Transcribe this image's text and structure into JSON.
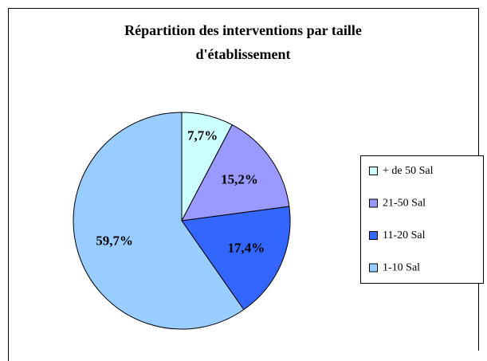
{
  "chart_data": {
    "type": "pie",
    "title": "Répartition des interventions par taille d'établissement",
    "categories": [
      "+ de 50 Sal",
      "21-50 Sal",
      "11-20 Sal",
      "1-10 Sal"
    ],
    "values": [
      7.7,
      15.2,
      17.4,
      59.7
    ],
    "value_labels": [
      "7,7%",
      "15,2%",
      "17,4%",
      "59,7%"
    ],
    "colors": [
      "#ccffff",
      "#9999ff",
      "#3366ff",
      "#99ccff"
    ],
    "legend": "right"
  }
}
